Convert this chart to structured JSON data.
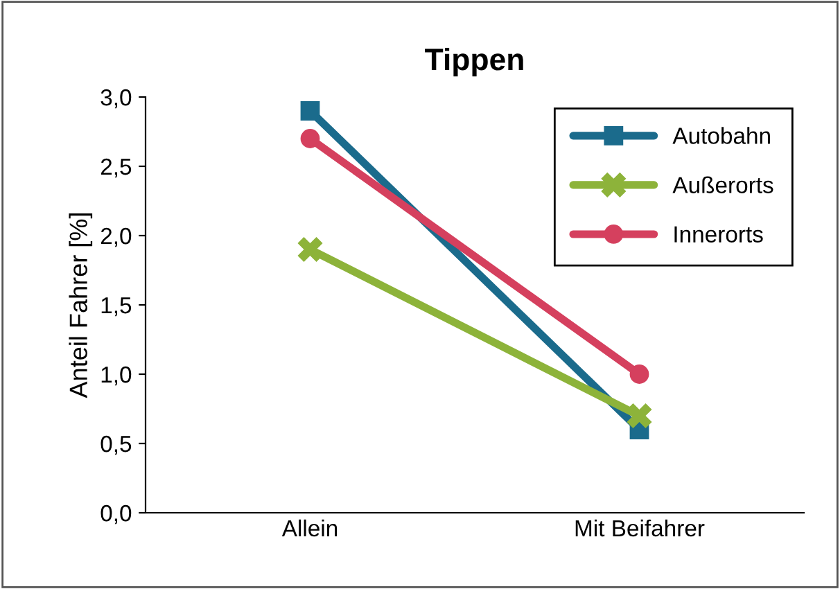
{
  "chart_data": {
    "type": "line",
    "title": "Tippen",
    "ylabel": "Anteil Fahrer [%]",
    "categories": [
      "Allein",
      "Mit Beifahrer"
    ],
    "series": [
      {
        "name": "Autobahn",
        "color": "#1b6b8c",
        "values": [
          2.9,
          0.6
        ],
        "marker": "square"
      },
      {
        "name": "Außerorts",
        "color": "#8db33a",
        "values": [
          1.9,
          0.7
        ],
        "marker": "cross"
      },
      {
        "name": "Innerorts",
        "color": "#d5405e",
        "values": [
          2.7,
          1.0
        ],
        "marker": "circle"
      }
    ],
    "ylim": [
      0,
      3
    ],
    "yticks": [
      {
        "value": 0,
        "label": "0,0"
      },
      {
        "value": 0.5,
        "label": "0,5"
      },
      {
        "value": 1,
        "label": "1,0"
      },
      {
        "value": 1.5,
        "label": "1,5"
      },
      {
        "value": 2,
        "label": "2,0"
      },
      {
        "value": 2.5,
        "label": "2,5"
      },
      {
        "value": 3,
        "label": "3,0"
      }
    ],
    "grid": false,
    "legend": "top right",
    "line_style": "solid"
  }
}
